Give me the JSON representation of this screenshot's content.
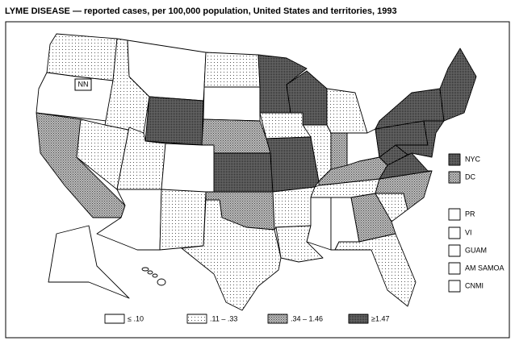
{
  "title": "LYME DISEASE — reported cases, per 100,000 population, United States and territories, 1993",
  "not_notifiable_label": "NN",
  "territories": [
    "NYC",
    "DC",
    "PR",
    "VI",
    "GUAM",
    "AM SAMOA",
    "CNMI"
  ],
  "legend": [
    "≤ .10",
    ".11 – .33",
    ".34 – 1.46",
    "≥1.47"
  ]
}
